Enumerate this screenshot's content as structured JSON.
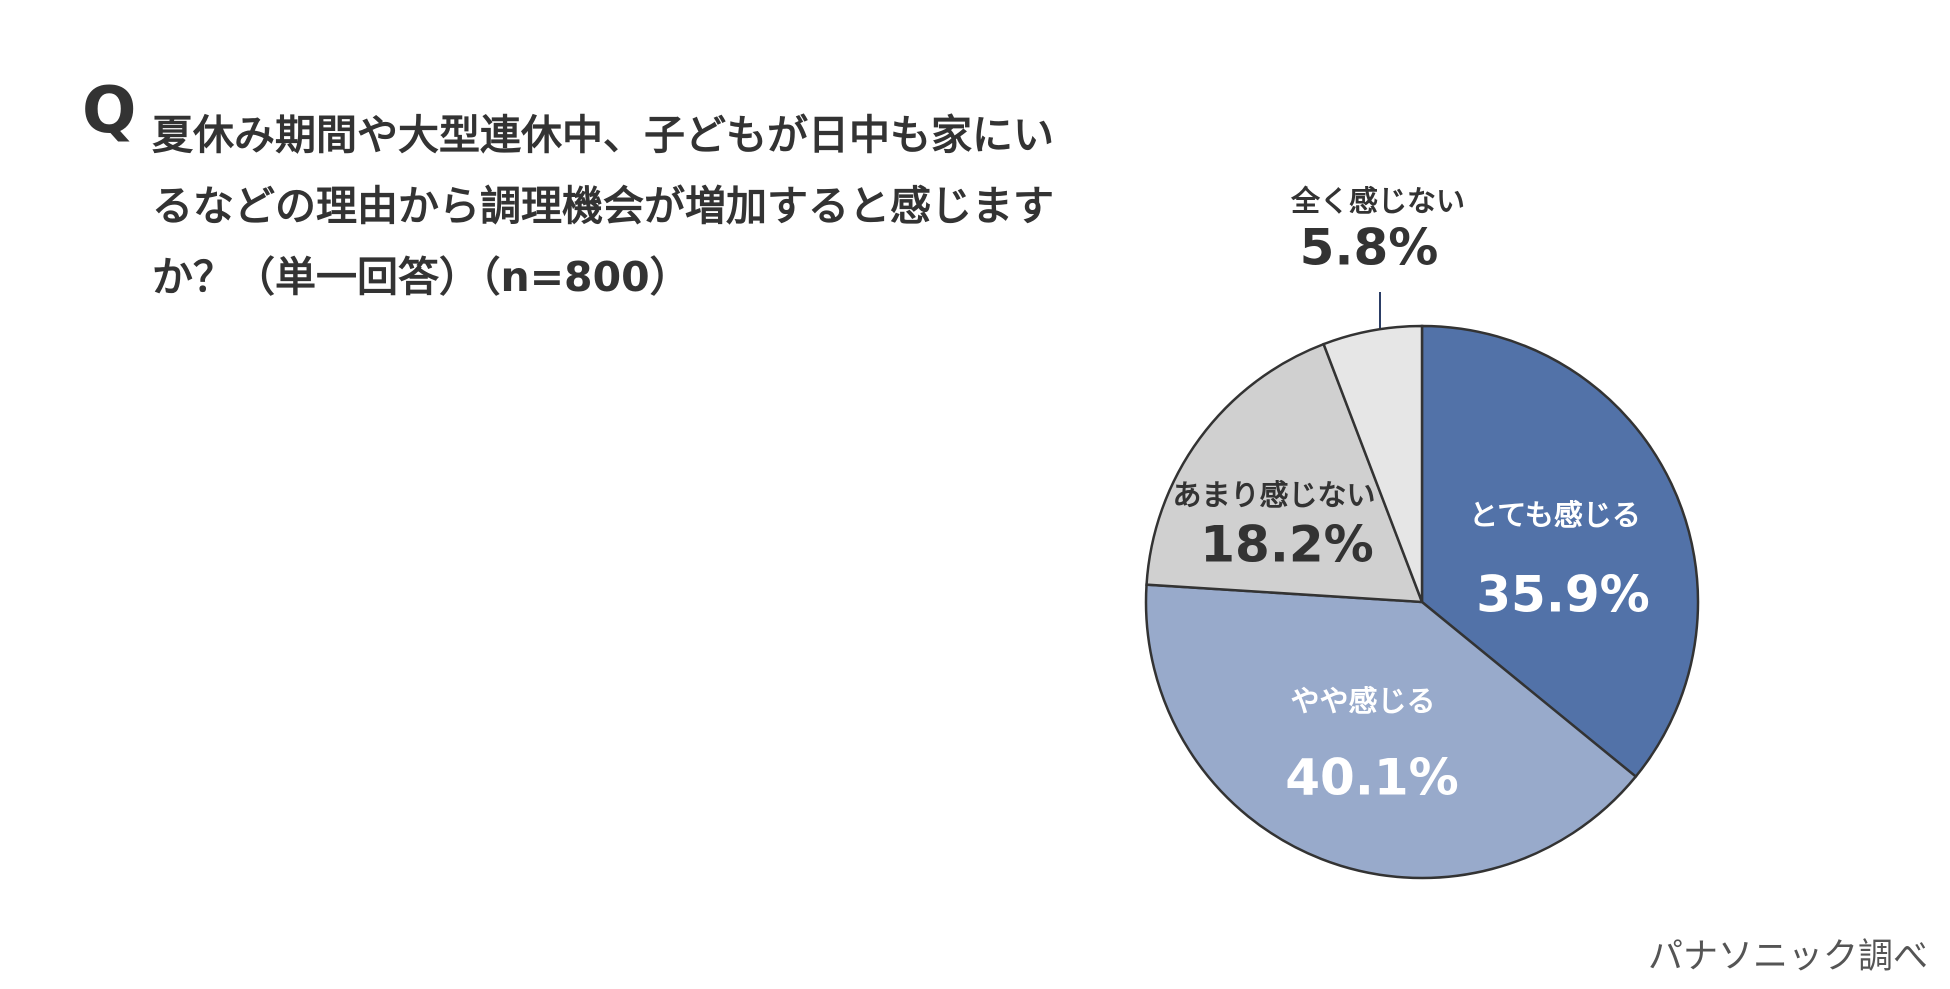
{
  "chart_data": {
    "type": "pie",
    "question_mark": "Q",
    "title": "夏休み期間や大型連休中、子どもが日中も家にいるなどの理由から調理機会が増加すると感じますか？（単一回答）（n=800）",
    "categories": [
      "とても感じる",
      "やや感じる",
      "あまり感じない",
      "全く感じない"
    ],
    "values": [
      35.9,
      40.1,
      18.2,
      5.8
    ],
    "value_labels": [
      "35.9%",
      "40.1%",
      "18.2%",
      "5.8%"
    ],
    "colors": [
      "#5272a8",
      "#98aacb",
      "#d0d0d0",
      "#e6e6e6"
    ],
    "source": "パナソニック調べ"
  }
}
